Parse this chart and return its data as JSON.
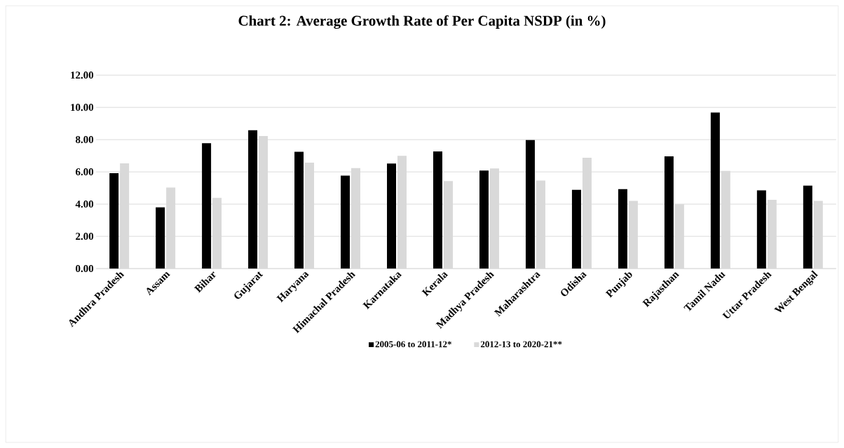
{
  "chart_data": {
    "type": "bar",
    "title": "Chart 2: Average Growth Rate of Per Capita NSDP (in %)",
    "categories": [
      "Andhra Pradesh",
      "Assam",
      "Bihar",
      "Gujarat",
      "Haryana",
      "Himachal Pradesh",
      "Karnataka",
      "Kerala",
      "Madhya Pradesh",
      "Maharashtra",
      "Odisha",
      "Punjab",
      "Rajasthan",
      "Tamil Nadu",
      "Uttar Pradesh",
      "West Bengal"
    ],
    "series": [
      {
        "name": "2005-06 to 2011-12*",
        "color": "#000000",
        "values": [
          5.92,
          3.8,
          7.78,
          8.58,
          7.25,
          5.77,
          6.52,
          7.27,
          6.08,
          7.97,
          4.88,
          4.93,
          6.96,
          9.68,
          4.85,
          5.15
        ]
      },
      {
        "name": "2012-13 to 2020-21**",
        "color": "#d9d9d9",
        "values": [
          6.53,
          5.03,
          4.38,
          8.22,
          6.57,
          6.23,
          7.0,
          5.43,
          6.21,
          5.46,
          6.88,
          4.2,
          3.99,
          6.06,
          4.27,
          4.2
        ]
      }
    ],
    "ylim": [
      0,
      12
    ],
    "yticks": [
      {
        "value": 0,
        "label": "0.00"
      },
      {
        "value": 2,
        "label": "2.00"
      },
      {
        "value": 4,
        "label": "4.00"
      },
      {
        "value": 6,
        "label": "6.00"
      },
      {
        "value": 8,
        "label": "8.00"
      },
      {
        "value": 10,
        "label": "10.00"
      },
      {
        "value": 12,
        "label": "12.00"
      }
    ],
    "grid": "y",
    "legend": "bottom"
  }
}
